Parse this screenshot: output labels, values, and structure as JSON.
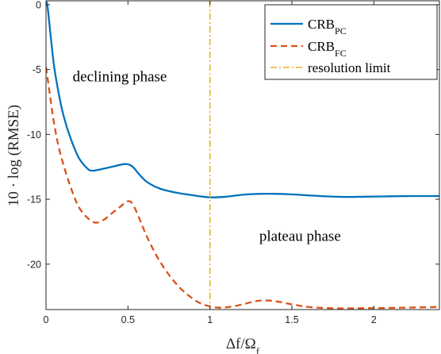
{
  "chart_data": {
    "type": "line",
    "xlabel": "Δf/Ω",
    "xlabel_sub": "f",
    "ylabel": "10 · log (RMSE)",
    "xlim": [
      0,
      2.4
    ],
    "ylim": [
      -23.5,
      0.3
    ],
    "x_ticks": [
      {
        "value": 0,
        "label": "0"
      },
      {
        "value": 0.5,
        "label": "0.5"
      },
      {
        "value": 1,
        "label": "1"
      },
      {
        "value": 1.5,
        "label": "1.5"
      },
      {
        "value": 2,
        "label": "2"
      }
    ],
    "y_ticks": [
      {
        "value": 0,
        "label": "0"
      },
      {
        "value": -5,
        "label": "-5"
      },
      {
        "value": -10,
        "label": "-10"
      },
      {
        "value": -15,
        "label": "-15"
      },
      {
        "value": -20,
        "label": "-20"
      }
    ],
    "grid": false,
    "legend_position": "top-right",
    "series": [
      {
        "name": "CRB",
        "name_sub": "PC",
        "color": "#0072BD",
        "style": "solid",
        "points": [
          [
            0.0,
            0.3
          ],
          [
            0.01,
            -0.2
          ],
          [
            0.03,
            -2.6
          ],
          [
            0.05,
            -4.8
          ],
          [
            0.08,
            -7.0
          ],
          [
            0.11,
            -8.7
          ],
          [
            0.15,
            -10.3
          ],
          [
            0.2,
            -11.8
          ],
          [
            0.25,
            -12.6
          ],
          [
            0.28,
            -12.8
          ],
          [
            0.33,
            -12.7
          ],
          [
            0.4,
            -12.5
          ],
          [
            0.47,
            -12.3
          ],
          [
            0.5,
            -12.3
          ],
          [
            0.53,
            -12.5
          ],
          [
            0.57,
            -13.1
          ],
          [
            0.62,
            -13.7
          ],
          [
            0.7,
            -14.2
          ],
          [
            0.8,
            -14.5
          ],
          [
            0.9,
            -14.7
          ],
          [
            1.0,
            -14.85
          ],
          [
            1.1,
            -14.8
          ],
          [
            1.2,
            -14.65
          ],
          [
            1.3,
            -14.58
          ],
          [
            1.4,
            -14.58
          ],
          [
            1.5,
            -14.62
          ],
          [
            1.6,
            -14.7
          ],
          [
            1.7,
            -14.77
          ],
          [
            1.82,
            -14.82
          ],
          [
            1.95,
            -14.8
          ],
          [
            2.1,
            -14.77
          ],
          [
            2.25,
            -14.75
          ],
          [
            2.4,
            -14.75
          ]
        ]
      },
      {
        "name": "CRB",
        "name_sub": "FC",
        "color": "#D95319",
        "style": "dashed",
        "points": [
          [
            0.0,
            -4.8
          ],
          [
            0.02,
            -6.6
          ],
          [
            0.05,
            -9.2
          ],
          [
            0.08,
            -11.1
          ],
          [
            0.12,
            -12.9
          ],
          [
            0.16,
            -14.4
          ],
          [
            0.2,
            -15.6
          ],
          [
            0.25,
            -16.4
          ],
          [
            0.3,
            -16.8
          ],
          [
            0.35,
            -16.6
          ],
          [
            0.4,
            -16.1
          ],
          [
            0.45,
            -15.6
          ],
          [
            0.5,
            -15.15
          ],
          [
            0.53,
            -15.4
          ],
          [
            0.57,
            -16.5
          ],
          [
            0.62,
            -18.0
          ],
          [
            0.7,
            -19.9
          ],
          [
            0.8,
            -21.6
          ],
          [
            0.9,
            -22.7
          ],
          [
            0.97,
            -23.15
          ],
          [
            1.05,
            -23.35
          ],
          [
            1.12,
            -23.3
          ],
          [
            1.2,
            -23.1
          ],
          [
            1.28,
            -22.85
          ],
          [
            1.35,
            -22.8
          ],
          [
            1.42,
            -22.9
          ],
          [
            1.5,
            -23.1
          ],
          [
            1.6,
            -23.3
          ],
          [
            1.75,
            -23.4
          ],
          [
            1.9,
            -23.4
          ],
          [
            2.05,
            -23.38
          ],
          [
            2.2,
            -23.35
          ],
          [
            2.4,
            -23.3
          ]
        ]
      },
      {
        "name": "resolution limit",
        "color": "#EDB120",
        "style": "dashdot",
        "x_value": 1.0
      }
    ],
    "annotations": [
      {
        "text": "declining phase",
        "x": 0.45,
        "y": -5.9
      },
      {
        "text": "plateau phase",
        "x": 1.55,
        "y": -18.2
      }
    ]
  }
}
